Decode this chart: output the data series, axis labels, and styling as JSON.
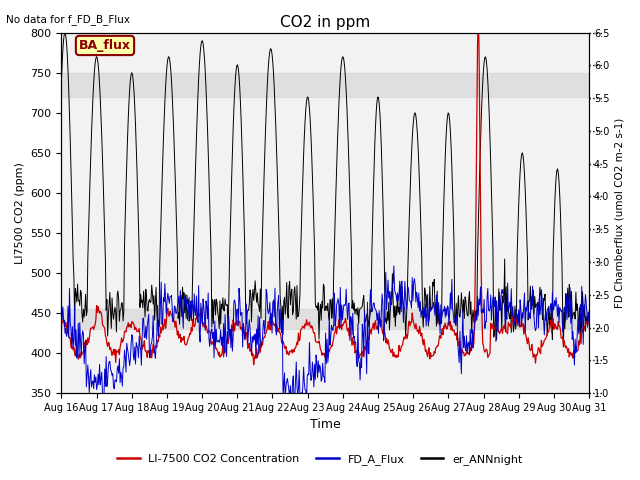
{
  "title": "CO2 in ppm",
  "top_left_text": "No data for f_FD_B_Flux",
  "xlabel": "Time",
  "ylabel_left": "LI7500 CO2 (ppm)",
  "ylabel_right_display": "FD Chamberflux (umol CO2 m-2 s-1)",
  "ylim_left": [
    350,
    800
  ],
  "ylim_right": [
    1.0,
    6.5
  ],
  "xlim": [
    0,
    15
  ],
  "xtick_labels": [
    "Aug 16",
    "Aug 17",
    "Aug 18",
    "Aug 19",
    "Aug 20",
    "Aug 21",
    "Aug 22",
    "Aug 23",
    "Aug 24",
    "Aug 25",
    "Aug 26",
    "Aug 27",
    "Aug 28",
    "Aug 29",
    "Aug 30",
    "Aug 31"
  ],
  "shaded_band_upper": [
    720,
    750
  ],
  "shaded_band_lower": [
    430,
    455
  ],
  "shaded_color": "#d8d8d8",
  "bg_color": "#f2f2f2",
  "legend_box_label": "BA_flux",
  "legend_box_bg": "#ffffaa",
  "legend_box_edge": "#8B0000",
  "col_red": "#cc0000",
  "col_blue": "#0000cc",
  "col_black": "#000000",
  "legend_labels": [
    "LI-7500 CO2 Concentration",
    "FD_A_Flux",
    "er_ANNnight"
  ],
  "seed": 42
}
